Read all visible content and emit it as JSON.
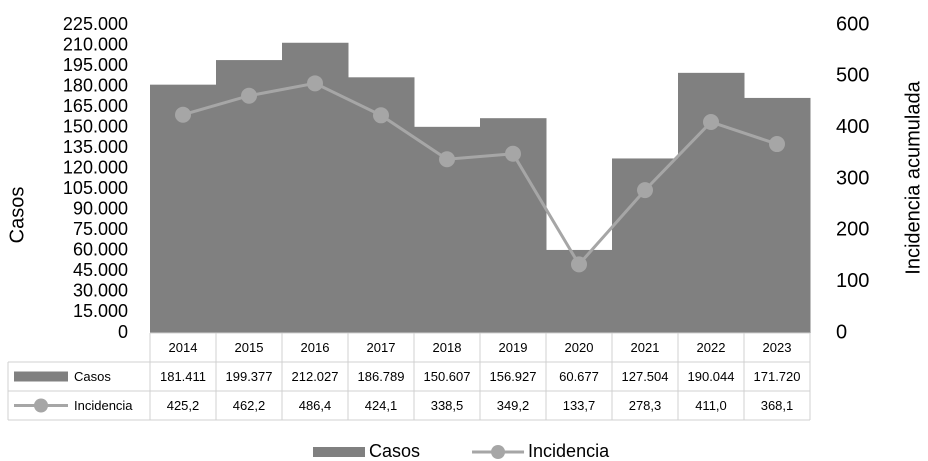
{
  "chart_data": {
    "type": "bar",
    "categories": [
      "2014",
      "2015",
      "2016",
      "2017",
      "2018",
      "2019",
      "2020",
      "2021",
      "2022",
      "2023"
    ],
    "series": [
      {
        "name": "Casos",
        "type": "bar",
        "color": "#808080",
        "values": [
          181411,
          199377,
          212027,
          186789,
          150607,
          156927,
          60677,
          127504,
          190044,
          171720
        ],
        "value_labels": [
          "181.411",
          "199.377",
          "212.027",
          "186.789",
          "150.607",
          "156.927",
          "60.677",
          "127.504",
          "190.044",
          "171.720"
        ]
      },
      {
        "name": "Incidencia",
        "type": "line",
        "axis": "y2",
        "color": "#a6a6a6",
        "values": [
          425.2,
          462.2,
          486.4,
          424.1,
          338.5,
          349.2,
          133.7,
          278.3,
          411.0,
          368.1
        ],
        "value_labels": [
          "425,2",
          "462,2",
          "486,4",
          "424,1",
          "338,5",
          "349,2",
          "133,7",
          "278,3",
          "411,0",
          "368,1"
        ]
      }
    ],
    "y_label": "Casos",
    "y2_label": "Incidencia acumulada",
    "ylim": [
      0,
      225000
    ],
    "yticks": [
      0,
      {
        "value": 15000,
        "label": "15.000"
      },
      {
        "value": 30000,
        "label": "30.000"
      },
      {
        "value": 45000,
        "label": "45.000"
      },
      {
        "value": 60000,
        "label": "60.000"
      },
      {
        "value": 75000,
        "label": "75.000"
      },
      {
        "value": 90000,
        "label": "90.000"
      },
      {
        "value": 105000,
        "label": "105.000"
      },
      {
        "value": 120000,
        "label": "120.000"
      },
      {
        "value": 135000,
        "label": "135.000"
      },
      {
        "value": 150000,
        "label": "150.000"
      },
      {
        "value": 165000,
        "label": "165.000"
      },
      {
        "value": 180000,
        "label": "180.000"
      },
      {
        "value": 195000,
        "label": "195.000"
      },
      {
        "value": 210000,
        "label": "210.000"
      },
      {
        "value": 225000,
        "label": "225.000"
      }
    ],
    "y2lim": [
      0,
      600
    ],
    "y2ticks": [
      0,
      100,
      200,
      300,
      400,
      500,
      600
    ],
    "grid": false,
    "legend": "bottom",
    "data_table": true
  }
}
